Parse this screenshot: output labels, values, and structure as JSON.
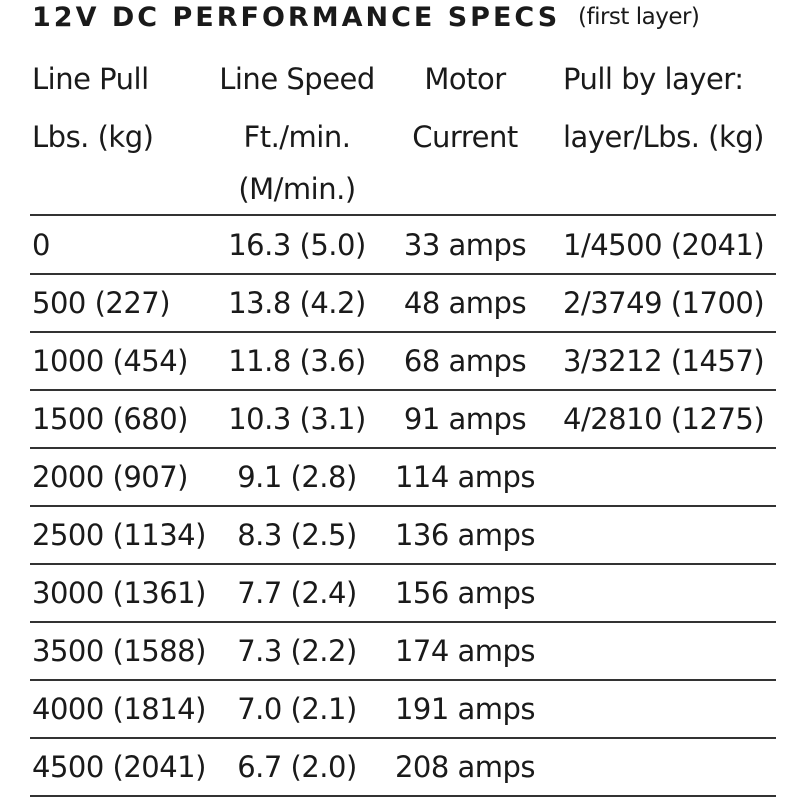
{
  "header": {
    "title": "12V DC PERFORMANCE SPECS",
    "subtitle": "(first layer)"
  },
  "table": {
    "columns": [
      [
        "Line Pull",
        "Lbs. (kg)"
      ],
      [
        "Line Speed",
        "Ft./min.",
        "(M/min.)"
      ],
      [
        "Motor",
        "Current"
      ],
      [
        "Pull by layer:",
        "layer/Lbs. (kg)"
      ]
    ],
    "rows": [
      [
        "0",
        "16.3 (5.0)",
        "33 amps",
        "1/4500 (2041)"
      ],
      [
        "500 (227)",
        "13.8 (4.2)",
        "48 amps",
        "2/3749 (1700)"
      ],
      [
        "1000 (454)",
        "11.8 (3.6)",
        "68 amps",
        "3/3212 (1457)"
      ],
      [
        "1500 (680)",
        "10.3 (3.1)",
        "91 amps",
        "4/2810 (1275)"
      ],
      [
        "2000 (907)",
        "9.1 (2.8)",
        "114 amps"
      ],
      [
        "2500 (1134)",
        "8.3 (2.5)",
        "136 amps"
      ],
      [
        "3000 (1361)",
        "7.7 (2.4)",
        "156 amps"
      ],
      [
        "3500 (1588)",
        "7.3 (2.2)",
        "174 amps"
      ],
      [
        "4000 (1814)",
        "7.0 (2.1)",
        "191 amps"
      ],
      [
        "4500 (2041)",
        "6.7 (2.0)",
        "208 amps"
      ]
    ]
  }
}
